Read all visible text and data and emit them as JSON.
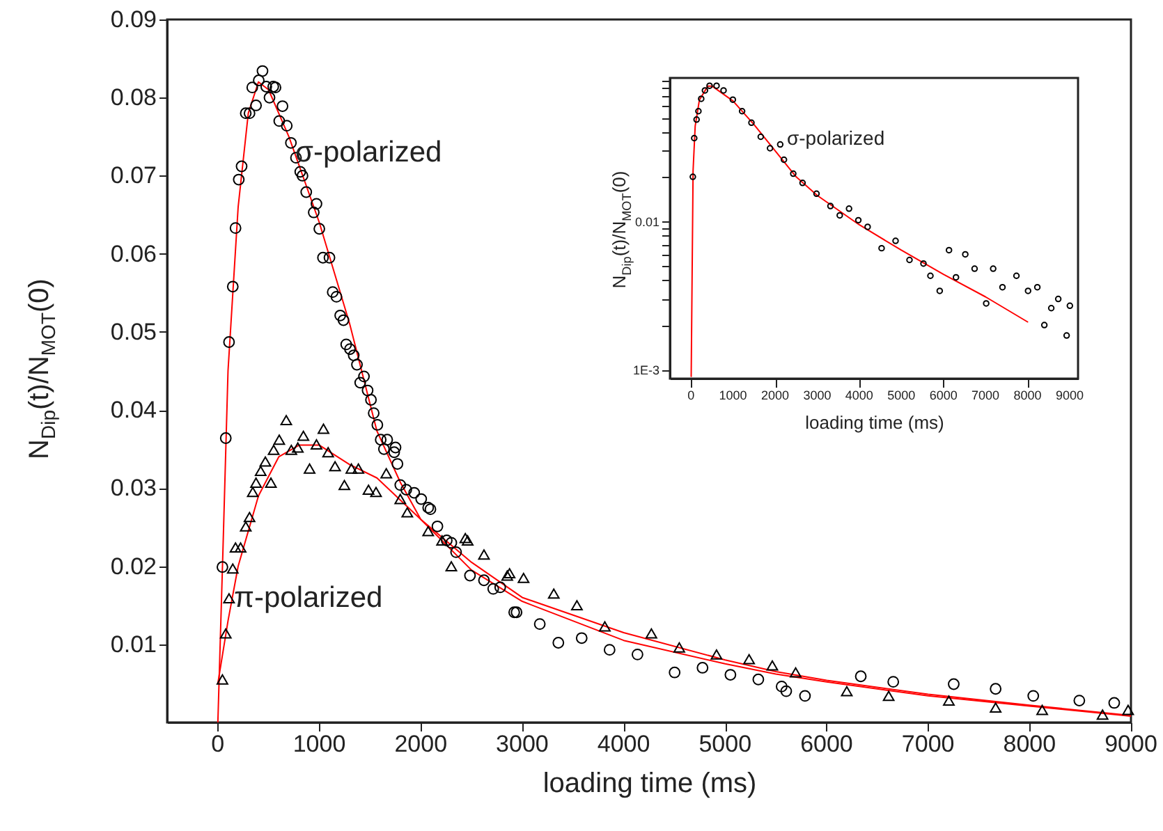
{
  "chart_data": [
    {
      "type": "scatter",
      "xlabel": "loading time (ms)",
      "ylabel": "N$_{Dip}$(t)/N$_{MOT}$(0)",
      "xlim": [
        -500,
        9000
      ],
      "ylim": [
        0,
        0.09
      ],
      "xticks": [
        0,
        1000,
        2000,
        3000,
        4000,
        5000,
        6000,
        7000,
        8000,
        9000
      ],
      "yticks": [
        0.01,
        0.02,
        0.03,
        0.04,
        0.05,
        0.06,
        0.07,
        0.08,
        0.09
      ],
      "annotations": [
        "σ-polarized",
        "π-polarized"
      ],
      "series": [
        {
          "type": "line",
          "color": "#ff0000",
          "x": [
            0,
            50,
            100,
            200,
            300,
            400,
            500,
            700,
            1000,
            1300,
            1568,
            1800,
            2000,
            2500,
            3000,
            4000,
            5000,
            5500,
            6000,
            7000,
            8000,
            9000
          ],
          "values": [
            0,
            0.022,
            0.045,
            0.066,
            0.078,
            0.082,
            0.081,
            0.075,
            0.064,
            0.051,
            0.0373,
            0.0307,
            0.026,
            0.0195,
            0.0155,
            0.0105,
            0.0075,
            0.0062,
            0.0052,
            0.0034,
            0.0021,
            0.0008
          ]
        },
        {
          "type": "line",
          "color": "#ff0000",
          "x": [
            0,
            100,
            200,
            400,
            600,
            800,
            1000,
            1300,
            1568,
            2000,
            2500,
            3000,
            4000,
            5000,
            5500,
            6000,
            7000,
            8000,
            9000
          ],
          "values": [
            0.005,
            0.013,
            0.02,
            0.029,
            0.034,
            0.0355,
            0.0355,
            0.033,
            0.0313,
            0.026,
            0.0205,
            0.016,
            0.0115,
            0.008,
            0.0065,
            0.0054,
            0.0036,
            0.0022,
            0.0009
          ]
        },
        {
          "type": "scatter",
          "marker": "circle",
          "color": "#000000",
          "x": [
            45,
            78,
            110,
            147,
            174,
            206,
            234,
            275,
            312,
            339,
            376,
            403,
            440,
            477,
            509,
            546,
            568,
            605,
            637,
            679,
            720,
            770,
            812,
            834,
            871,
            945,
            972,
            1000,
            1036,
            1100,
            1132,
            1169,
            1206,
            1238,
            1265,
            1302,
            1339,
            1371,
            1403,
            1440,
            1476,
            1509,
            1536,
            1572,
            1605,
            1637,
            1669,
            1738,
            1751,
            1770,
            1798,
            1857,
            1935,
            2004,
            2073,
            2095,
            2164,
            2256,
            2301,
            2348,
            2485,
            2623,
            2714,
            2783,
            2921,
            2944,
            3173,
            3356,
            3586,
            3861,
            4136,
            4502,
            4777,
            5052,
            5327,
            5557,
            5602,
            5787,
            6337,
            6657,
            7253,
            7666,
            8037,
            8491,
            8835
          ],
          "values": [
            0.0199,
            0.0364,
            0.0487,
            0.0558,
            0.0633,
            0.0695,
            0.0712,
            0.078,
            0.078,
            0.0813,
            0.079,
            0.0822,
            0.0834,
            0.0814,
            0.08,
            0.0814,
            0.0813,
            0.077,
            0.0789,
            0.0764,
            0.0742,
            0.0723,
            0.0705,
            0.07,
            0.0679,
            0.0653,
            0.0664,
            0.0632,
            0.0595,
            0.0595,
            0.0551,
            0.0545,
            0.0521,
            0.0515,
            0.0484,
            0.0478,
            0.047,
            0.0458,
            0.0435,
            0.0443,
            0.0425,
            0.0413,
            0.0396,
            0.0381,
            0.0362,
            0.035,
            0.0362,
            0.0346,
            0.0352,
            0.0331,
            0.0304,
            0.0298,
            0.0294,
            0.0286,
            0.0275,
            0.0273,
            0.0251,
            0.0233,
            0.023,
            0.0218,
            0.0188,
            0.0182,
            0.0171,
            0.0173,
            0.0141,
            0.0141,
            0.0126,
            0.0102,
            0.0108,
            0.0093,
            0.0087,
            0.0064,
            0.007,
            0.0061,
            0.0055,
            0.0046,
            0.004,
            0.0034,
            0.0059,
            0.0052,
            0.0049,
            0.0043,
            0.0034,
            0.0028,
            0.0025
          ]
        },
        {
          "type": "scatter",
          "marker": "triangle",
          "color": "#000000",
          "x": [
            45,
            78,
            110,
            147,
            174,
            224,
            275,
            312,
            344,
            376,
            422,
            468,
            523,
            550,
            605,
            674,
            724,
            788,
            843,
            904,
            972,
            1041,
            1087,
            1155,
            1247,
            1316,
            1385,
            1485,
            1559,
            1660,
            1798,
            1867,
            2073,
            2210,
            2301,
            2439,
            2462,
            2623,
            2852,
            2875,
            3013,
            3311,
            3539,
            3814,
            4273,
            4548,
            4915,
            5236,
            5465,
            5695,
            6199,
            6612,
            7205,
            7666,
            8125,
            8720,
            8972
          ],
          "values": [
            0.0055,
            0.0114,
            0.0159,
            0.0197,
            0.0224,
            0.0224,
            0.0251,
            0.0263,
            0.0295,
            0.0307,
            0.0322,
            0.0334,
            0.0307,
            0.0349,
            0.0362,
            0.0387,
            0.0349,
            0.0352,
            0.0367,
            0.0325,
            0.0356,
            0.0376,
            0.0346,
            0.0328,
            0.0304,
            0.0325,
            0.0325,
            0.0298,
            0.0295,
            0.0319,
            0.0286,
            0.0269,
            0.0245,
            0.0233,
            0.02,
            0.0236,
            0.0233,
            0.0215,
            0.0188,
            0.0191,
            0.0185,
            0.0165,
            0.015,
            0.0123,
            0.0114,
            0.0096,
            0.0087,
            0.0081,
            0.0073,
            0.0064,
            0.004,
            0.0034,
            0.0028,
            0.0019,
            0.0016,
            0.001,
            0.0016
          ]
        }
      ]
    },
    {
      "type": "scatter",
      "log": "y",
      "xlabel": "loading time (ms)",
      "ylabel": "N$_{Dip}$(t)/N$_{MOT}$(0)",
      "xlim": [
        -500,
        9200
      ],
      "ylim": [
        0.00087,
        0.093
      ],
      "xticks": [
        0,
        1000,
        2000,
        3000,
        4000,
        5000,
        6000,
        7000,
        8000,
        9000
      ],
      "yticks": [
        {
          "value": 0.001,
          "label": "1E-3"
        },
        {
          "value": 0.002,
          "label": null
        },
        {
          "value": 0.003,
          "label": null
        },
        {
          "value": 0.004,
          "label": null
        },
        {
          "value": 0.005,
          "label": null
        },
        {
          "value": 0.006,
          "label": null
        },
        {
          "value": 0.007,
          "label": null
        },
        {
          "value": 0.008,
          "label": null
        },
        {
          "value": 0.009,
          "label": null
        },
        0.01,
        {
          "value": 0.02,
          "label": null
        },
        {
          "value": 0.03,
          "label": null
        },
        {
          "value": 0.04,
          "label": null
        },
        {
          "value": 0.05,
          "label": null
        },
        {
          "value": 0.06,
          "label": null
        },
        {
          "value": 0.07,
          "label": null
        },
        {
          "value": 0.08,
          "label": null
        },
        {
          "value": 0.09,
          "label": null
        }
      ],
      "annotations": [
        "σ-polarized"
      ],
      "series": [
        {
          "type": "line",
          "color": "#ff0000",
          "x": [
            5,
            50,
            100,
            200,
            400,
            500,
            1000,
            1500,
            2000,
            2500,
            3000,
            4000,
            5000,
            6000,
            7000,
            8000
          ],
          "values": [
            0.0009,
            0.022,
            0.044,
            0.066,
            0.082,
            0.082,
            0.065,
            0.045,
            0.03,
            0.02,
            0.015,
            0.0095,
            0.0064,
            0.0044,
            0.0031,
            0.0021
          ]
        },
        {
          "type": "scatter",
          "marker": "circle",
          "color": "#000000",
          "x": [
            44,
            77,
            133,
            177,
            243,
            332,
            442,
            608,
            774,
            995,
            1215,
            1437,
            1658,
            1879,
            2121,
            2210,
            2431,
            2652,
            2984,
            3315,
            3536,
            3757,
            3978,
            4199,
            4531,
            4863,
            5194,
            5526,
            5691,
            5912,
            6133,
            6299,
            6520,
            6741,
            7017,
            7183,
            7404,
            7736,
            8012,
            8233,
            8399,
            8564,
            8730,
            8929,
            9006
          ],
          "values": [
            0.02,
            0.0365,
            0.0487,
            0.0555,
            0.0673,
            0.0766,
            0.0824,
            0.0824,
            0.0766,
            0.0664,
            0.0555,
            0.0464,
            0.0373,
            0.0312,
            0.0331,
            0.0261,
            0.021,
            0.0182,
            0.0154,
            0.0127,
            0.011,
            0.0122,
            0.0102,
            0.0092,
            0.0066,
            0.0074,
            0.0055,
            0.0052,
            0.0043,
            0.0034,
            0.0064,
            0.0042,
            0.006,
            0.0048,
            0.0028,
            0.0048,
            0.0036,
            0.0043,
            0.0034,
            0.0036,
            0.002,
            0.0026,
            0.003,
            0.0017,
            0.0027
          ]
        }
      ]
    }
  ]
}
